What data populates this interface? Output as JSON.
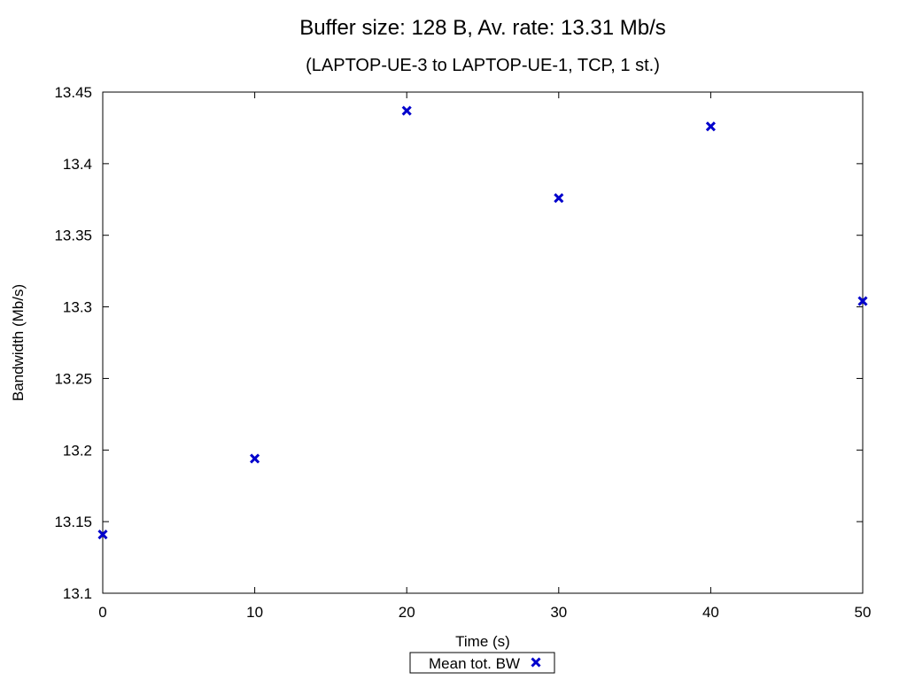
{
  "chart_data": {
    "type": "scatter",
    "title": "Buffer size: 128 B, Av. rate: 13.31 Mb/s",
    "subtitle": "(LAPTOP-UE-3 to LAPTOP-UE-1, TCP, 1 st.)",
    "xlabel": "Time (s)",
    "ylabel": "Bandwidth (Mb/s)",
    "xlim": [
      0,
      50
    ],
    "ylim": [
      13.1,
      13.45
    ],
    "xticks": [
      0,
      10,
      20,
      30,
      40,
      50
    ],
    "xtick_labels": [
      "0",
      "10",
      "20",
      "30",
      "40",
      "50"
    ],
    "yticks": [
      13.1,
      13.15,
      13.2,
      13.25,
      13.3,
      13.35,
      13.4,
      13.45
    ],
    "ytick_labels": [
      "13.1",
      "13.15",
      "13.2",
      "13.25",
      "13.3",
      "13.35",
      "13.4",
      "13.45"
    ],
    "grid": false,
    "legend_position": "bottom-center",
    "series": [
      {
        "name": "Mean tot. BW",
        "color": "#0000cc",
        "marker": "x",
        "x": [
          0,
          10,
          20,
          30,
          40,
          50
        ],
        "y": [
          13.141,
          13.194,
          13.437,
          13.376,
          13.426,
          13.304
        ]
      }
    ]
  }
}
